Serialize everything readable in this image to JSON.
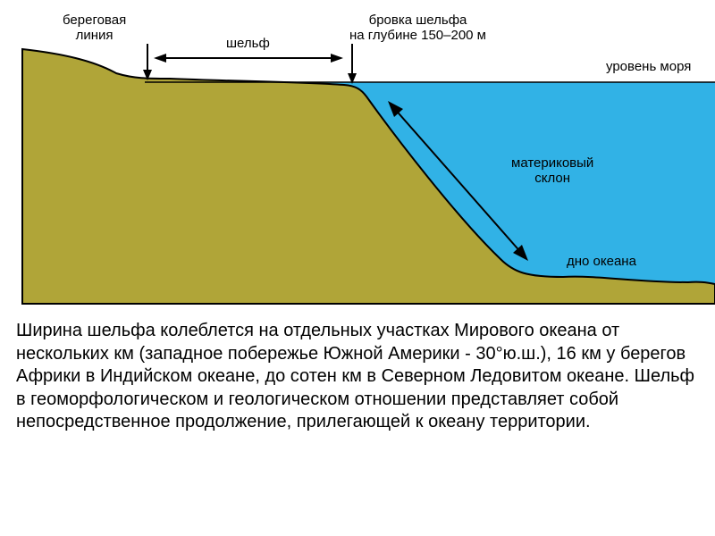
{
  "diagram": {
    "type": "infographic",
    "background_color": "#ffffff",
    "water_color": "#31b2e6",
    "land_color": "#b0a538",
    "stroke_color": "#000000",
    "labels": {
      "coastline": "береговая\nлиния",
      "shelf": "шельф",
      "shelf_edge": "бровка шельфа\nна глубине 150–200 м",
      "sea_level": "уровень моря",
      "continental_slope": "материковый\nсклон",
      "ocean_floor": "дно  океана"
    },
    "label_fontsize": 15,
    "label_color": "#000000"
  },
  "description": {
    "text": "Ширина шельфа колеблется на отдельных участках Мирового океана от нескольких км (западное побережье Южной Америки - 30°ю.ш.), 16 км у берегов Африки в Индийском океане, до сотен км в Северном Ледовитом океане. Шельф в геоморфологическом и геологическом отношении представляет собой непосредственное продолжение, прилегающей к океану территории.",
    "fontsize": 20,
    "color": "#000000"
  }
}
